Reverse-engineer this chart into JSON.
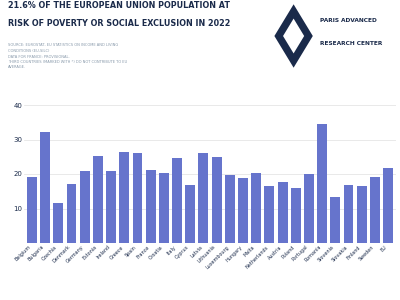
{
  "title_line1": "21.6% OF THE EUROPEAN UNION POPULATION AT",
  "title_line2": "RISK OF POVERTY OR SOCIAL EXCLUSION IN 2022",
  "subtitle": "SOURCE: EUROSTAT, EU STATISTICS ON INCOME AND LIVING\nCONDITIONS (EU-SILC)\nDATA FOR FRANCE: PROVISIONAL.\nTHIRD COUNTRIES (MARKED WITH *) DO NOT CONTRIBUTE TO EU\nAVERAGE.",
  "logo_text_line1": "PARIS ADVANCED",
  "logo_text_line2": "RESEARCH CENTER",
  "categories": [
    "Belgium",
    "Bulgaria",
    "Czechia",
    "Denmark",
    "Germany",
    "Estonia",
    "Ireland",
    "Greece",
    "Spain",
    "France",
    "Croatia",
    "Italy",
    "Cyprus",
    "Latvia",
    "Lithuania",
    "Luxembourg",
    "Hungary",
    "Malta",
    "Netherlands",
    "Austria",
    "Poland",
    "Portugal",
    "Romania",
    "Slovenia",
    "Slovakia",
    "Finland",
    "Sweden",
    "EU"
  ],
  "values": [
    19.0,
    32.2,
    11.7,
    17.1,
    21.0,
    25.3,
    20.8,
    26.3,
    26.2,
    21.1,
    20.3,
    24.6,
    16.7,
    26.0,
    24.9,
    19.6,
    18.7,
    20.2,
    16.6,
    17.7,
    16.0,
    20.1,
    34.4,
    13.4,
    16.7,
    16.4,
    19.0,
    21.6
  ],
  "bar_color": "#6674cc",
  "background_color": "#ffffff",
  "ylim": [
    0,
    40
  ],
  "yticks": [
    0,
    10,
    20,
    30,
    40
  ],
  "title_color": "#1a2a4a",
  "subtitle_color": "#8899aa",
  "logo_color": "#1a2a4a",
  "grid_color": "#e0e0e0"
}
